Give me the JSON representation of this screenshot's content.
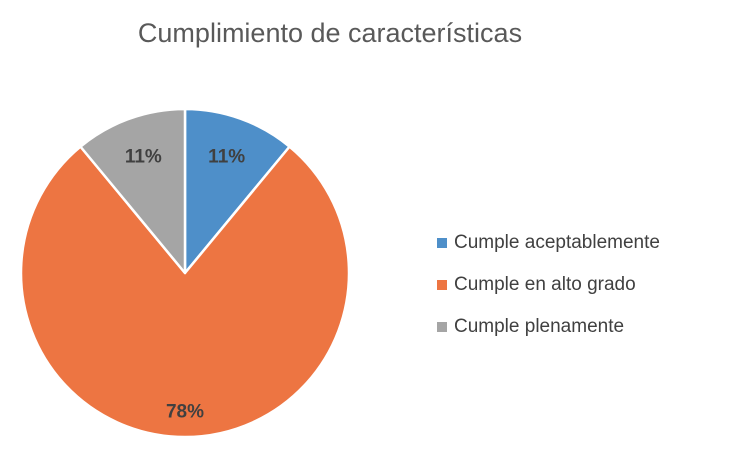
{
  "chart_data": {
    "type": "pie",
    "title": "Cumplimiento  de características",
    "categories": [
      "Cumple aceptablemente",
      "Cumple en alto grado",
      "Cumple plenamente"
    ],
    "values": [
      11,
      78,
      11
    ],
    "data_labels": [
      "11%",
      "78%",
      "11%"
    ],
    "colors": [
      "#4E8FC9",
      "#ED7542",
      "#A5A5A5"
    ],
    "legend_position": "right",
    "start_angle_deg": 0,
    "direction": "clockwise"
  }
}
